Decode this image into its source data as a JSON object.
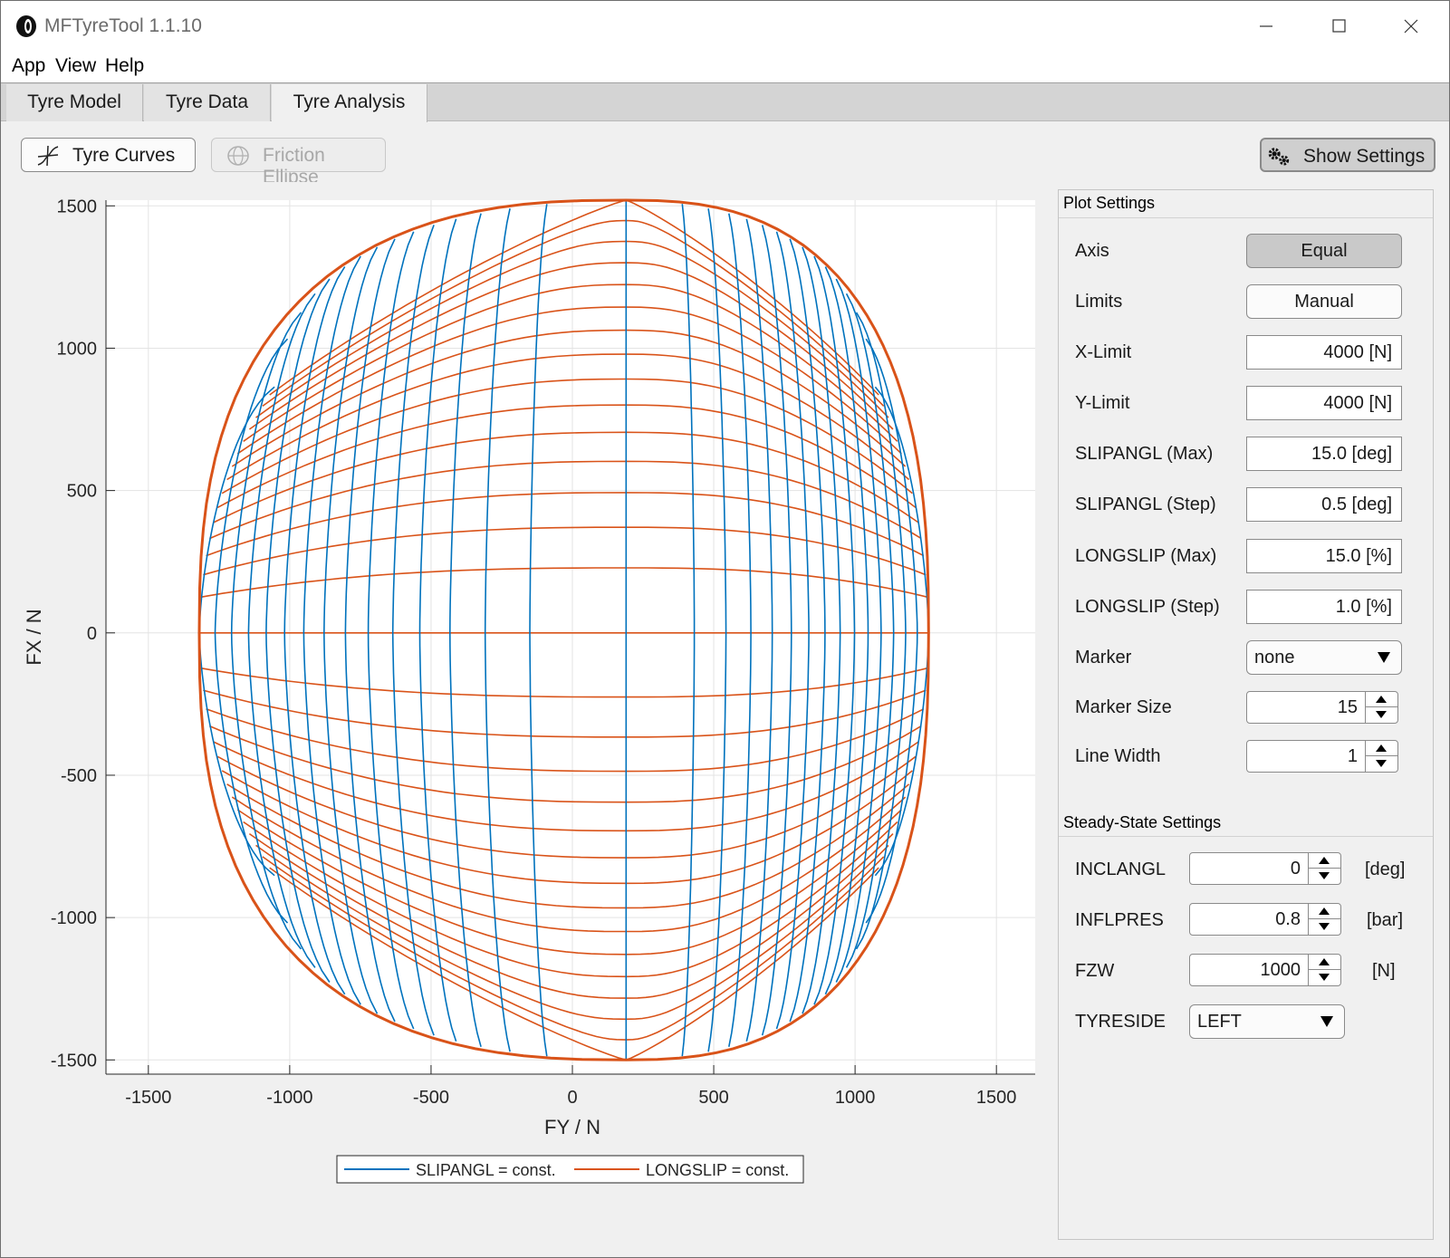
{
  "window": {
    "title": "MFTyreTool 1.1.10"
  },
  "menu": [
    "App",
    "View",
    "Help"
  ],
  "tabs": [
    {
      "label": "Tyre Model",
      "active": false
    },
    {
      "label": "Tyre Data",
      "active": false
    },
    {
      "label": "Tyre Analysis",
      "active": true
    }
  ],
  "toolbar": {
    "tyre_curves": "Tyre Curves",
    "friction_ellipse": "Friction Ellipse",
    "show_settings": "Show Settings"
  },
  "plot_settings": {
    "title": "Plot Settings",
    "axis": {
      "label": "Axis",
      "value": "Equal"
    },
    "limits": {
      "label": "Limits",
      "value": "Manual"
    },
    "x_limit": {
      "label": "X-Limit",
      "value": "4000 [N]"
    },
    "y_limit": {
      "label": "Y-Limit",
      "value": "4000 [N]"
    },
    "slipangl_max": {
      "label": "SLIPANGL (Max)",
      "value": "15.0 [deg]"
    },
    "slipangl_step": {
      "label": "SLIPANGL (Step)",
      "value": "0.5 [deg]"
    },
    "longslip_max": {
      "label": "LONGSLIP (Max)",
      "value": "15.0 [%]"
    },
    "longslip_step": {
      "label": "LONGSLIP (Step)",
      "value": "1.0 [%]"
    },
    "marker": {
      "label": "Marker",
      "value": "none"
    },
    "marker_size": {
      "label": "Marker Size",
      "value": "15"
    },
    "line_width": {
      "label": "Line Width",
      "value": "1"
    }
  },
  "steady_state": {
    "title": "Steady-State Settings",
    "inclangl": {
      "label": "INCLANGL",
      "value": "0",
      "unit": "[deg]"
    },
    "inflpres": {
      "label": "INFLPRES",
      "value": "0.8",
      "unit": "[bar]"
    },
    "fzw": {
      "label": "FZW",
      "value": "1000",
      "unit": "[N]"
    },
    "tyreside": {
      "label": "TYRESIDE",
      "value": "LEFT"
    }
  },
  "colors": {
    "slipangl": "#0072BD",
    "longslip": "#D95319"
  },
  "chart_data": {
    "type": "line",
    "xlabel": "FY / N",
    "ylabel": "FX / N",
    "xlim": [
      -1650,
      1650
    ],
    "ylim": [
      -1550,
      1520
    ],
    "xticks": [
      -1500,
      -1000,
      -500,
      0,
      500,
      1000,
      1500
    ],
    "yticks": [
      -1500,
      -1000,
      -500,
      0,
      500,
      1000,
      1500
    ],
    "grid": true,
    "legend": {
      "position": "bottom",
      "entries": [
        "SLIPANGL = const.",
        "LONGSLIP = const."
      ]
    },
    "envelope": {
      "fy_min": -1320,
      "fy_max": 1260,
      "fx_min": -1500,
      "fx_max": 1520,
      "fy_center": 190
    },
    "series": [
      {
        "name": "SLIPANGL = const.",
        "color": "#0072BD",
        "curve_count": 31
      },
      {
        "name": "LONGSLIP = const.",
        "color": "#D95319",
        "curve_count": 31
      }
    ]
  }
}
